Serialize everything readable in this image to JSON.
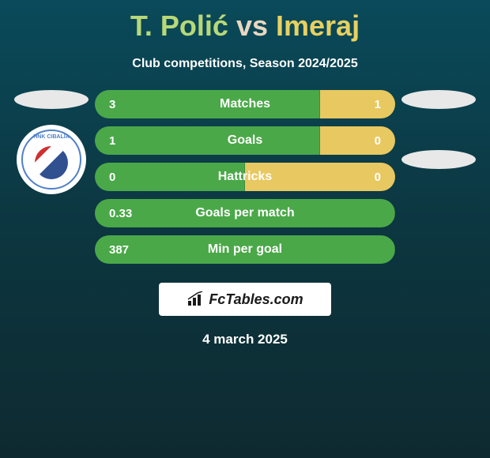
{
  "title": {
    "player1": "T. Polić",
    "vs": "vs",
    "player2": "Imeraj",
    "player1_color": "#b8d878",
    "vs_color": "#e8d8c0",
    "player2_color": "#e8d060"
  },
  "subtitle": "Club competitions, Season 2024/2025",
  "club_logo_text": "HNK CIBALIA",
  "stats": [
    {
      "label": "Matches",
      "left_val": "3",
      "right_val": "1",
      "left_pct": 75,
      "right_pct": 25,
      "left_color": "#4aa848",
      "right_color": "#e8c860"
    },
    {
      "label": "Goals",
      "left_val": "1",
      "right_val": "0",
      "left_pct": 75,
      "right_pct": 25,
      "left_color": "#4aa848",
      "right_color": "#e8c860"
    },
    {
      "label": "Hattricks",
      "left_val": "0",
      "right_val": "0",
      "left_pct": 50,
      "right_pct": 50,
      "left_color": "#4aa848",
      "right_color": "#e8c860"
    },
    {
      "label": "Goals per match",
      "left_val": "0.33",
      "right_val": "",
      "left_pct": 100,
      "right_pct": 0,
      "left_color": "#4aa848",
      "right_color": "#e8c860"
    },
    {
      "label": "Min per goal",
      "left_val": "387",
      "right_val": "",
      "left_pct": 100,
      "right_pct": 0,
      "left_color": "#4aa848",
      "right_color": "#e8c860"
    }
  ],
  "footer_brand": "FcTables.com",
  "date": "4 march 2025",
  "colors": {
    "bg_gradient_top": "#0a4a5a",
    "bg_gradient_mid": "#0c3640",
    "bg_gradient_bottom": "#0e2a30"
  }
}
